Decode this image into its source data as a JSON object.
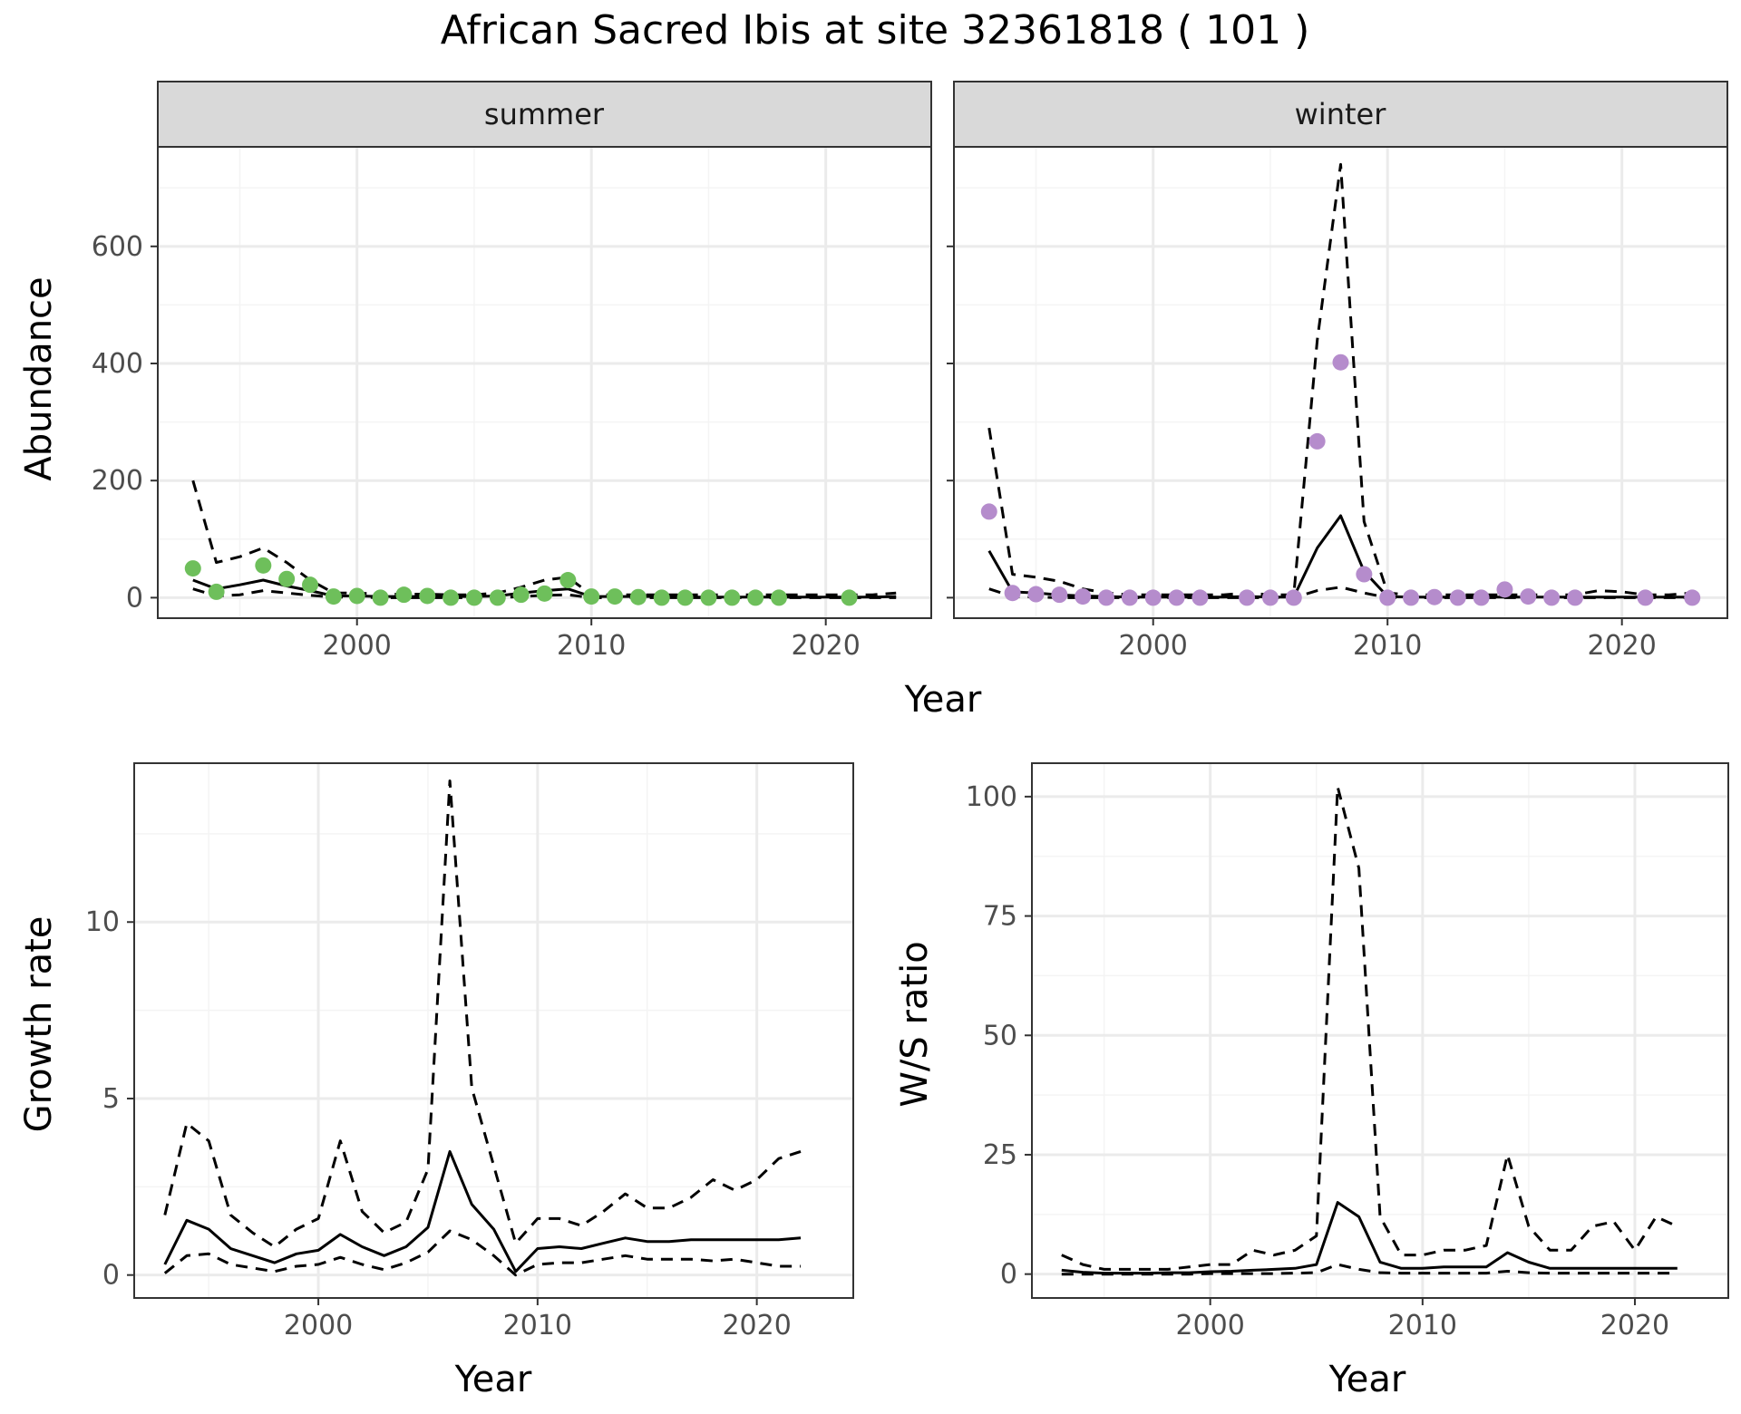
{
  "figure": {
    "title": "African Sacred Ibis at site 32361818 ( 101 )"
  },
  "chart_data": [
    {
      "id": "abundance-summer",
      "type": "line",
      "facet": "summer",
      "xlabel": "Year",
      "ylabel": "Abundance",
      "xlim": [
        1991.5,
        2024.5
      ],
      "ylim": [
        -35,
        770
      ],
      "xticks": [
        2000,
        2010,
        2020
      ],
      "yticks": [
        0,
        200,
        400,
        600
      ],
      "grid": true,
      "point_color": "#6ebf5b",
      "lines": [
        {
          "style": "dashed",
          "x": [
            1993,
            1994,
            1995,
            1996,
            1997,
            1998,
            1999,
            2000,
            2001,
            2002,
            2003,
            2004,
            2005,
            2006,
            2007,
            2008,
            2009,
            2010,
            2011,
            2012,
            2013,
            2014,
            2015,
            2016,
            2017,
            2018,
            2019,
            2020,
            2021,
            2022,
            2023
          ],
          "y": [
            200,
            60,
            70,
            85,
            60,
            30,
            8,
            8,
            6,
            6,
            6,
            5,
            5,
            8,
            18,
            30,
            35,
            5,
            5,
            5,
            5,
            5,
            5,
            5,
            5,
            5,
            5,
            5,
            5,
            5,
            8
          ]
        },
        {
          "style": "solid",
          "x": [
            1993,
            1994,
            1995,
            1996,
            1997,
            1998,
            1999,
            2000,
            2001,
            2002,
            2003,
            2004,
            2005,
            2006,
            2007,
            2008,
            2009,
            2010,
            2011,
            2012,
            2013,
            2014,
            2015,
            2016,
            2017,
            2018,
            2019,
            2020,
            2021,
            2022,
            2023
          ],
          "y": [
            30,
            15,
            22,
            30,
            20,
            12,
            3,
            3,
            2,
            2,
            2,
            2,
            2,
            3,
            8,
            12,
            15,
            2,
            2,
            2,
            2,
            1,
            1,
            1,
            1,
            1,
            1,
            1,
            1,
            1,
            2
          ]
        },
        {
          "style": "dashed",
          "x": [
            1993,
            1994,
            1995,
            1996,
            1997,
            1998,
            1999,
            2000,
            2001,
            2002,
            2003,
            2004,
            2005,
            2006,
            2007,
            2008,
            2009,
            2010,
            2011,
            2012,
            2013,
            2014,
            2015,
            2016,
            2017,
            2018,
            2019,
            2020,
            2021,
            2022,
            2023
          ],
          "y": [
            15,
            3,
            5,
            12,
            8,
            4,
            1,
            1,
            0,
            0,
            0,
            0,
            0,
            0,
            2,
            4,
            5,
            0,
            0,
            0,
            0,
            0,
            0,
            0,
            0,
            0,
            0,
            0,
            0,
            0,
            0
          ]
        }
      ],
      "points": {
        "x": [
          1993,
          1994,
          1996,
          1997,
          1998,
          1999,
          2000,
          2001,
          2002,
          2003,
          2004,
          2005,
          2006,
          2007,
          2008,
          2009,
          2010,
          2011,
          2012,
          2013,
          2014,
          2015,
          2016,
          2017,
          2018,
          2021
        ],
        "y": [
          50,
          10,
          55,
          32,
          22,
          2,
          3,
          0,
          5,
          3,
          0,
          0,
          0,
          5,
          7,
          30,
          2,
          2,
          1,
          0,
          0,
          0,
          0,
          0,
          0,
          0
        ]
      }
    },
    {
      "id": "abundance-winter",
      "type": "line",
      "facet": "winter",
      "xlabel": "Year",
      "ylabel": "Abundance",
      "xlim": [
        1991.5,
        2024.5
      ],
      "ylim": [
        -35,
        770
      ],
      "xticks": [
        2000,
        2010,
        2020
      ],
      "yticks": [
        0,
        200,
        400,
        600
      ],
      "grid": true,
      "point_color": "#b58ccc",
      "lines": [
        {
          "style": "dashed",
          "x": [
            1993,
            1994,
            1995,
            1996,
            1997,
            1998,
            1999,
            2000,
            2001,
            2002,
            2003,
            2004,
            2005,
            2006,
            2007,
            2008,
            2009,
            2010,
            2011,
            2012,
            2013,
            2014,
            2015,
            2016,
            2017,
            2018,
            2019,
            2020,
            2021,
            2022,
            2023
          ],
          "y": [
            290,
            40,
            35,
            28,
            15,
            8,
            5,
            5,
            5,
            5,
            5,
            8,
            5,
            5,
            440,
            740,
            130,
            8,
            5,
            5,
            5,
            5,
            5,
            5,
            5,
            5,
            12,
            10,
            5,
            5,
            8
          ]
        },
        {
          "style": "solid",
          "x": [
            1993,
            1994,
            1995,
            1996,
            1997,
            1998,
            1999,
            2000,
            2001,
            2002,
            2003,
            2004,
            2005,
            2006,
            2007,
            2008,
            2009,
            2010,
            2011,
            2012,
            2013,
            2014,
            2015,
            2016,
            2017,
            2018,
            2019,
            2020,
            2021,
            2022,
            2023
          ],
          "y": [
            80,
            10,
            8,
            5,
            3,
            2,
            1,
            1,
            1,
            1,
            1,
            2,
            1,
            1,
            85,
            140,
            45,
            2,
            1,
            1,
            1,
            1,
            1,
            1,
            1,
            1,
            1,
            1,
            1,
            1,
            1
          ]
        },
        {
          "style": "dashed",
          "x": [
            1993,
            1994,
            1995,
            1996,
            1997,
            1998,
            1999,
            2000,
            2001,
            2002,
            2003,
            2004,
            2005,
            2006,
            2007,
            2008,
            2009,
            2010,
            2011,
            2012,
            2013,
            2014,
            2015,
            2016,
            2017,
            2018,
            2019,
            2020,
            2021,
            2022,
            2023
          ],
          "y": [
            15,
            2,
            1,
            0,
            0,
            0,
            0,
            0,
            0,
            0,
            0,
            0,
            0,
            0,
            12,
            18,
            8,
            0,
            0,
            0,
            0,
            0,
            0,
            0,
            0,
            0,
            0,
            0,
            0,
            0,
            0
          ]
        }
      ],
      "points": {
        "x": [
          1993,
          1994,
          1995,
          1996,
          1997,
          1998,
          1999,
          2000,
          2001,
          2002,
          2004,
          2005,
          2006,
          2007,
          2008,
          2009,
          2010,
          2011,
          2012,
          2013,
          2014,
          2015,
          2016,
          2017,
          2018,
          2021,
          2023
        ],
        "y": [
          147,
          8,
          6,
          5,
          2,
          0,
          0,
          0,
          0,
          0,
          0,
          0,
          0,
          267,
          402,
          40,
          0,
          0,
          1,
          0,
          0,
          14,
          2,
          0,
          0,
          0,
          0
        ]
      }
    },
    {
      "id": "growth-rate",
      "type": "line",
      "xlabel": "Year",
      "ylabel": "Growth rate",
      "xlim": [
        1991.6,
        2024.4
      ],
      "ylim": [
        -0.65,
        14.5
      ],
      "xticks": [
        2000,
        2010,
        2020
      ],
      "yticks": [
        0,
        5,
        10
      ],
      "grid": true,
      "lines": [
        {
          "style": "dashed",
          "x": [
            1993,
            1994,
            1995,
            1996,
            1997,
            1998,
            1999,
            2000,
            2001,
            2002,
            2003,
            2004,
            2005,
            2006,
            2007,
            2008,
            2009,
            2010,
            2011,
            2012,
            2013,
            2014,
            2015,
            2016,
            2017,
            2018,
            2019,
            2020,
            2021,
            2022
          ],
          "y": [
            1.7,
            4.3,
            3.8,
            1.7,
            1.2,
            0.8,
            1.3,
            1.6,
            3.8,
            1.8,
            1.2,
            1.5,
            3.0,
            14.0,
            5.3,
            3.1,
            0.9,
            1.6,
            1.6,
            1.4,
            1.8,
            2.3,
            1.9,
            1.9,
            2.2,
            2.7,
            2.4,
            2.7,
            3.3,
            3.5
          ]
        },
        {
          "style": "solid",
          "x": [
            1993,
            1994,
            1995,
            1996,
            1997,
            1998,
            1999,
            2000,
            2001,
            2002,
            2003,
            2004,
            2005,
            2006,
            2007,
            2008,
            2009,
            2010,
            2011,
            2012,
            2013,
            2014,
            2015,
            2016,
            2017,
            2018,
            2019,
            2020,
            2021,
            2022
          ],
          "y": [
            0.3,
            1.55,
            1.3,
            0.75,
            0.55,
            0.35,
            0.6,
            0.7,
            1.15,
            0.8,
            0.55,
            0.8,
            1.35,
            3.5,
            2.0,
            1.3,
            0.1,
            0.75,
            0.8,
            0.75,
            0.9,
            1.05,
            0.95,
            0.95,
            1.0,
            1.0,
            1.0,
            1.0,
            1.0,
            1.05
          ]
        },
        {
          "style": "dashed",
          "x": [
            1993,
            1994,
            1995,
            1996,
            1997,
            1998,
            1999,
            2000,
            2001,
            2002,
            2003,
            2004,
            2005,
            2006,
            2007,
            2008,
            2009,
            2010,
            2011,
            2012,
            2013,
            2014,
            2015,
            2016,
            2017,
            2018,
            2019,
            2020,
            2021,
            2022
          ],
          "y": [
            0.05,
            0.55,
            0.6,
            0.3,
            0.2,
            0.1,
            0.25,
            0.3,
            0.5,
            0.3,
            0.15,
            0.35,
            0.65,
            1.25,
            1.0,
            0.55,
            0.0,
            0.3,
            0.35,
            0.35,
            0.45,
            0.55,
            0.45,
            0.45,
            0.45,
            0.4,
            0.45,
            0.35,
            0.25,
            0.25
          ]
        }
      ]
    },
    {
      "id": "ws-ratio",
      "type": "line",
      "xlabel": "Year",
      "ylabel": "W/S ratio",
      "xlim": [
        1991.6,
        2024.4
      ],
      "ylim": [
        -5,
        107
      ],
      "xticks": [
        2000,
        2010,
        2020
      ],
      "yticks": [
        0,
        25,
        50,
        75,
        100
      ],
      "grid": true,
      "lines": [
        {
          "style": "dashed",
          "x": [
            1993,
            1994,
            1995,
            1996,
            1997,
            1998,
            1999,
            2000,
            2001,
            2002,
            2003,
            2004,
            2005,
            2006,
            2007,
            2008,
            2009,
            2010,
            2011,
            2012,
            2013,
            2014,
            2015,
            2016,
            2017,
            2018,
            2019,
            2020,
            2021,
            2022
          ],
          "y": [
            4,
            2,
            1,
            1,
            1,
            1,
            1.5,
            2,
            2,
            5,
            4,
            5,
            8,
            102,
            85,
            12,
            4,
            4,
            5,
            5,
            6,
            25,
            10,
            5,
            5,
            10,
            11,
            5,
            12,
            10
          ]
        },
        {
          "style": "solid",
          "x": [
            1993,
            1994,
            1995,
            1996,
            1997,
            1998,
            1999,
            2000,
            2001,
            2002,
            2003,
            2004,
            2005,
            2006,
            2007,
            2008,
            2009,
            2010,
            2011,
            2012,
            2013,
            2014,
            2015,
            2016,
            2017,
            2018,
            2019,
            2020,
            2021,
            2022
          ],
          "y": [
            0.8,
            0.4,
            0.2,
            0.2,
            0.2,
            0.3,
            0.3,
            0.5,
            0.6,
            0.8,
            1.0,
            1.2,
            2,
            15,
            12,
            2.5,
            1.2,
            1.2,
            1.5,
            1.5,
            1.5,
            4.5,
            2.5,
            1.2,
            1.2,
            1.2,
            1.2,
            1.2,
            1.2,
            1.2
          ]
        },
        {
          "style": "dashed",
          "x": [
            1993,
            1994,
            1995,
            1996,
            1997,
            1998,
            1999,
            2000,
            2001,
            2002,
            2003,
            2004,
            2005,
            2006,
            2007,
            2008,
            2009,
            2010,
            2011,
            2012,
            2013,
            2014,
            2015,
            2016,
            2017,
            2018,
            2019,
            2020,
            2021,
            2022
          ],
          "y": [
            0,
            0,
            0,
            0,
            0,
            0,
            0,
            0.1,
            0.1,
            0.1,
            0.1,
            0.2,
            0.3,
            2,
            1,
            0.3,
            0.2,
            0.2,
            0.2,
            0.2,
            0.2,
            0.6,
            0.3,
            0.2,
            0.2,
            0.2,
            0.2,
            0.2,
            0.2,
            0.2
          ]
        }
      ]
    }
  ],
  "colors": {
    "panel_border": "#333333",
    "grid_major": "#ebebeb",
    "grid_minor": "#f4f4f4",
    "strip_fill": "#d9d9d9",
    "line": "#000000"
  }
}
